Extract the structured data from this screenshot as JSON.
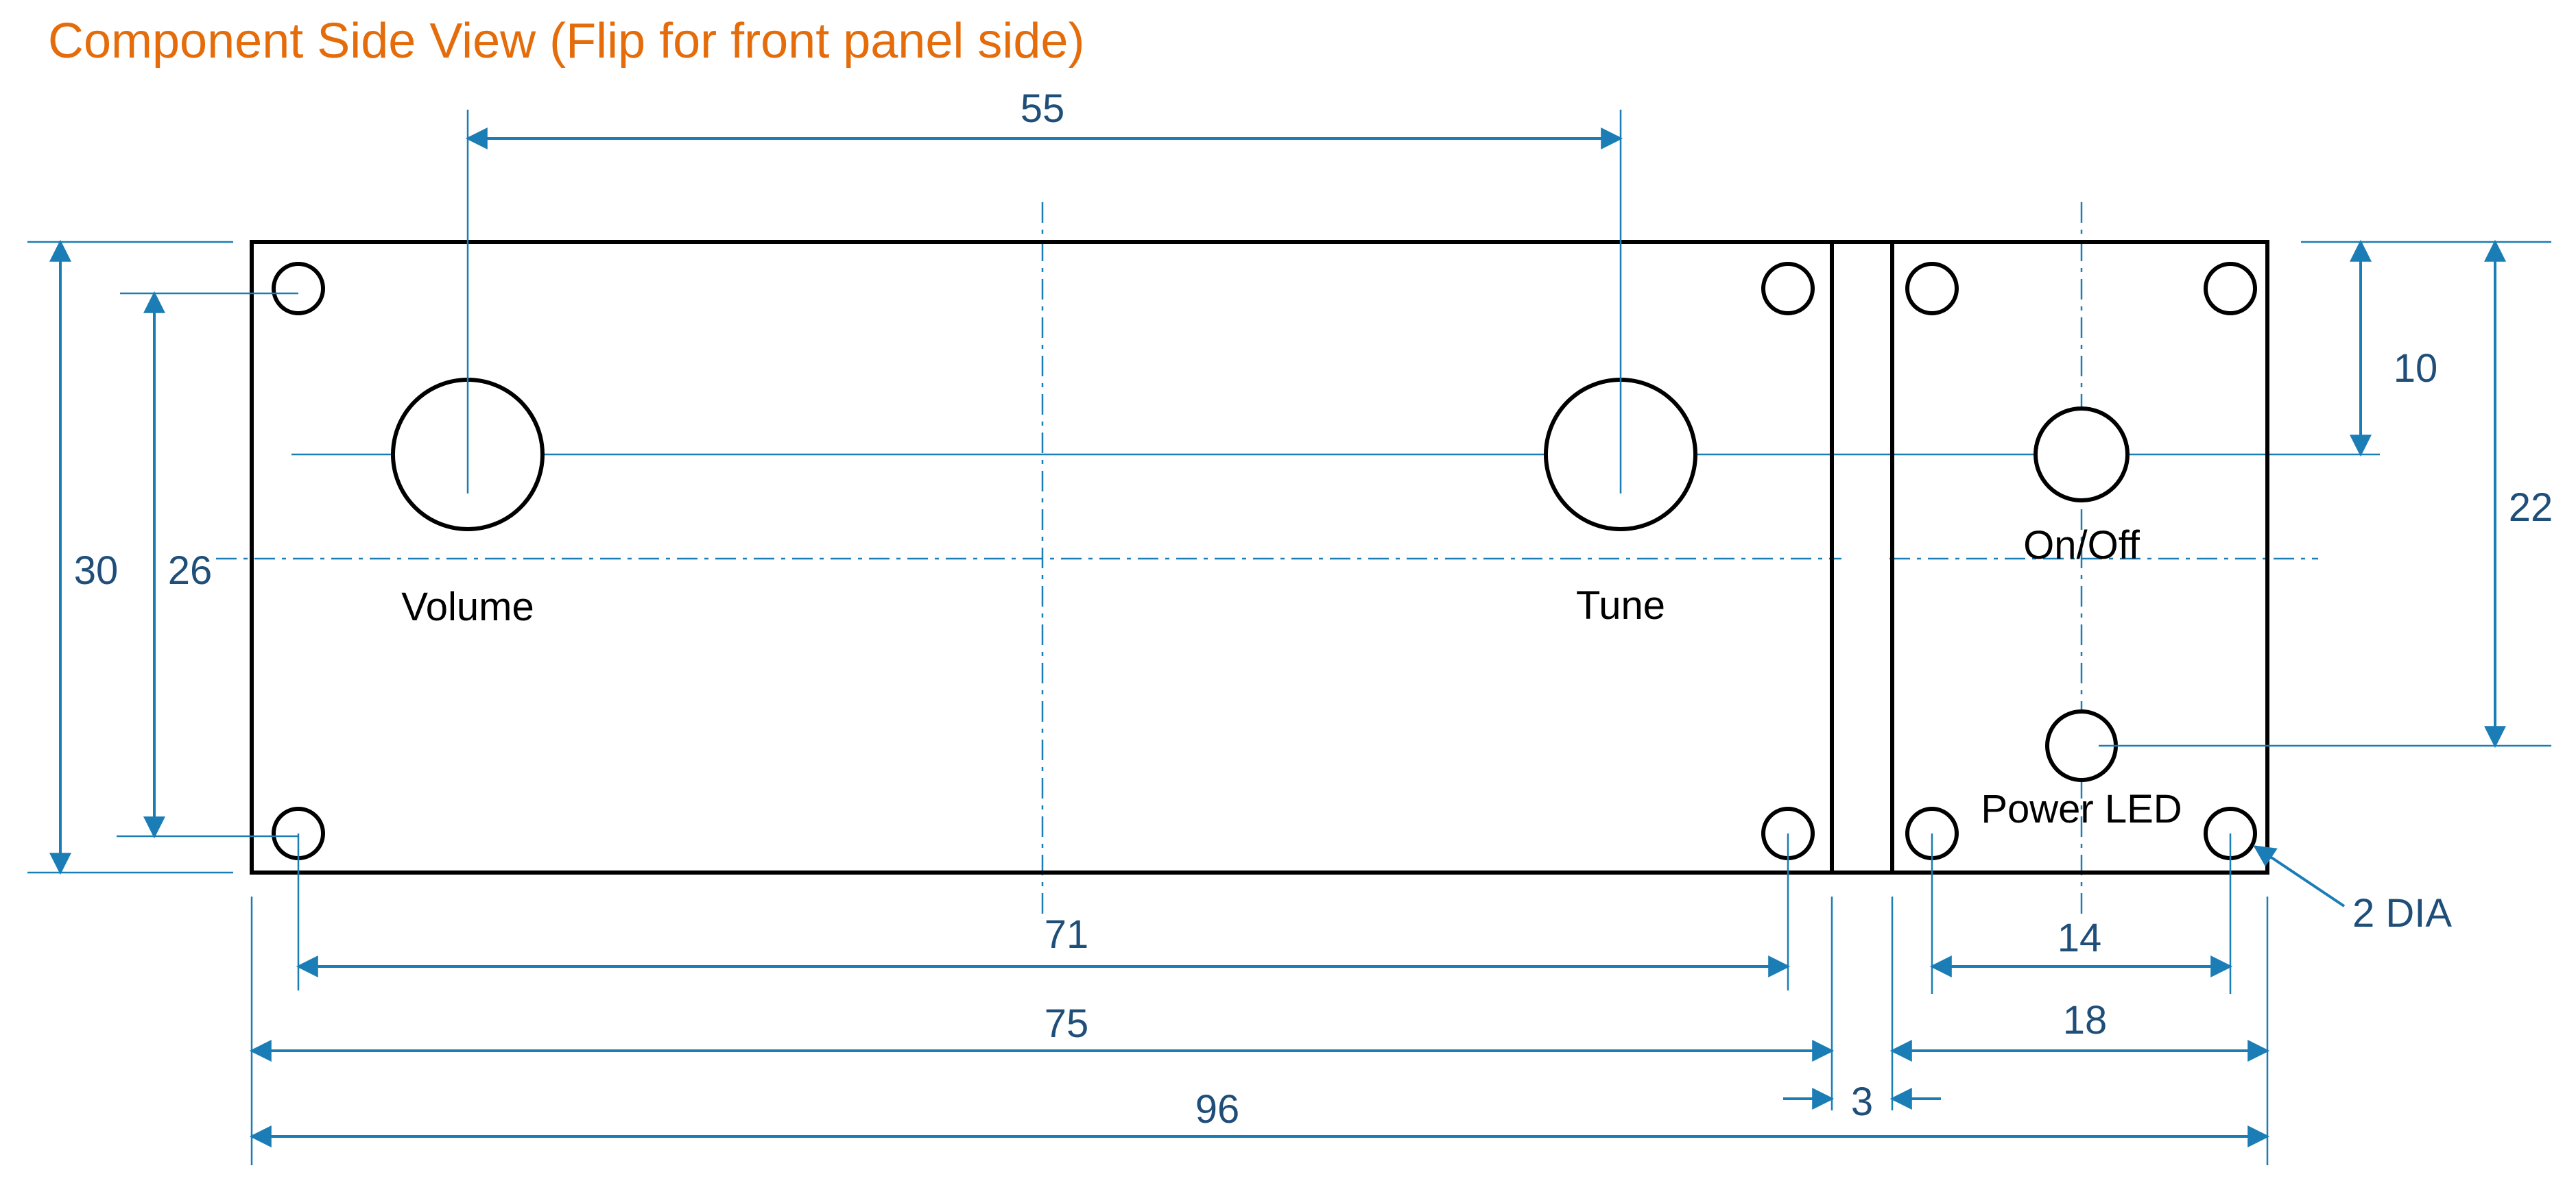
{
  "title": "Component Side View (Flip for front panel side)",
  "components": {
    "volume": "Volume",
    "tune": "Tune",
    "on_off": "On/Off",
    "power_led": "Power LED"
  },
  "dimensions": {
    "knob_spacing": "55",
    "overall_height": "30",
    "hole_vertical_spacing": "26",
    "switch_offset_from_top": "10",
    "led_offset_from_top": "22",
    "main_hole_spacing": "71",
    "main_panel_width": "75",
    "overall_width": "96",
    "panel_gap": "3",
    "small_hole_spacing": "14",
    "small_panel_width": "18",
    "hole_diameter": "2 DIA"
  },
  "colors": {
    "title": "#E46C0A",
    "dimension_line": "#1B7DB5",
    "dimension_text": "#1F4E79",
    "outline": "#000000"
  }
}
